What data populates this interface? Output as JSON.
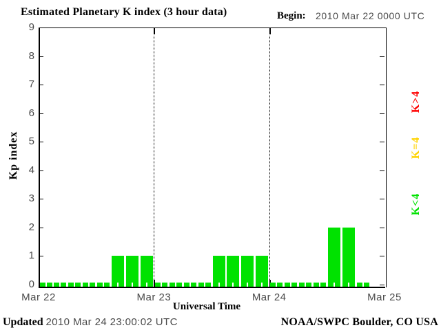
{
  "title": "Estimated Planetary K index (3 hour data)",
  "begin": {
    "label": "Begin:",
    "value": "2010 Mar 22 0000 UTC"
  },
  "footer": {
    "updated_label": "Updated",
    "updated_value": "2010 Mar 24 23:00:02 UTC",
    "credit": "NOAA/SWPC Boulder, CO USA"
  },
  "legend": [
    {
      "label": "K>4",
      "color": "#ff0000"
    },
    {
      "label": "K=4",
      "color": "#ffd300"
    },
    {
      "label": "K<4",
      "color": "#00e200"
    }
  ],
  "chart_data": {
    "type": "bar",
    "title": "Estimated Planetary K index (3 hour data)",
    "xlabel": "Universal Time",
    "ylabel": "Kp index",
    "ylim": [
      0,
      9
    ],
    "yticks": [
      0,
      1,
      2,
      3,
      4,
      5,
      6,
      7,
      8,
      9
    ],
    "x_day_labels": [
      "Mar 22",
      "Mar 23",
      "Mar 24",
      "Mar 25"
    ],
    "period_hours": 3,
    "days": [
      {
        "date": "Mar 22",
        "values": [
          0,
          0,
          0,
          0,
          0,
          1,
          1,
          1
        ]
      },
      {
        "date": "Mar 23",
        "values": [
          0,
          0,
          0,
          0,
          1,
          1,
          1,
          1
        ]
      },
      {
        "date": "Mar 24",
        "values": [
          0,
          0,
          0,
          0,
          2,
          2,
          0
        ]
      }
    ],
    "color_rule": {
      "low_below_4": "#00e200",
      "equal_4": "#ffd300",
      "high_above_4": "#ff0000"
    },
    "grid": "dotted vertical lines at day boundaries",
    "legend_position": "right, rotated 90deg"
  }
}
